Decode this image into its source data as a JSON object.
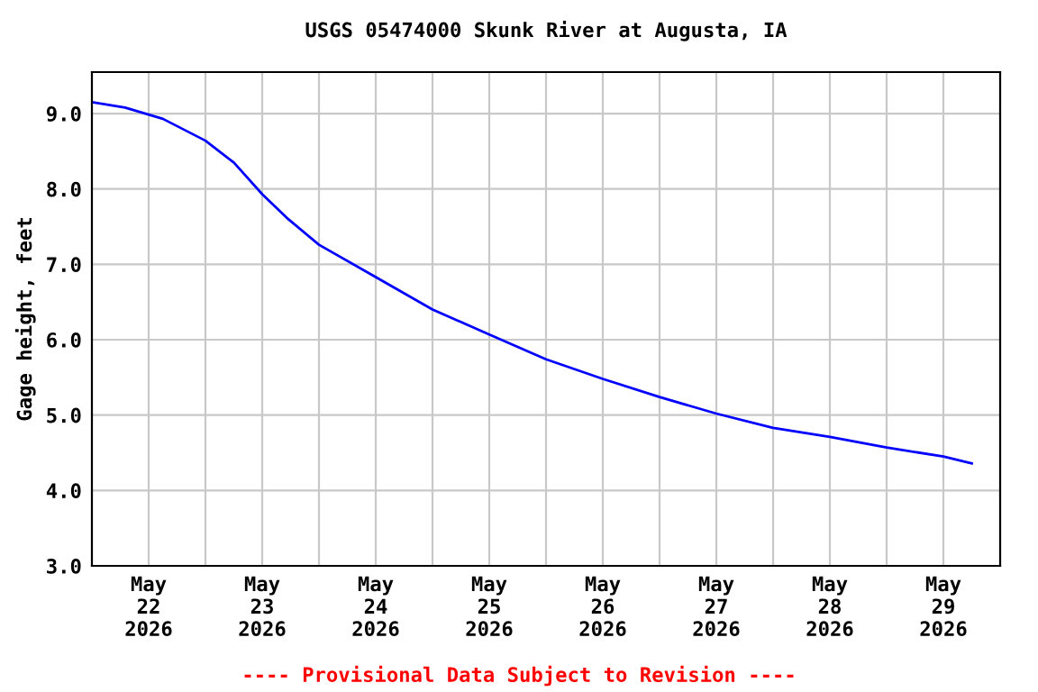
{
  "chart_data": {
    "type": "line",
    "title": "USGS 05474000 Skunk River at Augusta, IA",
    "ylabel": "Gage height, feet",
    "x": [
      "2026-05-22T00:00",
      "2026-05-22T07:00",
      "2026-05-22T15:00",
      "2026-05-23T00:00",
      "2026-05-23T06:00",
      "2026-05-23T12:00",
      "2026-05-23T17:30",
      "2026-05-24T00:00",
      "2026-05-24T12:00",
      "2026-05-25T00:00",
      "2026-05-25T12:00",
      "2026-05-26T00:00",
      "2026-05-26T12:00",
      "2026-05-27T00:00",
      "2026-05-27T12:00",
      "2026-05-28T00:00",
      "2026-05-28T12:00",
      "2026-05-29T00:00",
      "2026-05-29T12:00",
      "2026-05-29T18:00"
    ],
    "series": [
      {
        "color": "#0000ff",
        "values": [
          9.15,
          9.08,
          8.93,
          8.64,
          8.35,
          7.93,
          7.6,
          7.26,
          6.83,
          6.4,
          6.07,
          5.74,
          5.48,
          5.24,
          5.02,
          4.83,
          4.71,
          4.57,
          4.45,
          4.36
        ]
      }
    ],
    "xlim": [
      "2026-05-22T00:00",
      "2026-05-30T00:00"
    ],
    "xticks": [
      {
        "value": "2026-05-22T12:00",
        "label": "May\n22\n2026"
      },
      {
        "value": "2026-05-23T00:00",
        "label": null
      },
      {
        "value": "2026-05-23T12:00",
        "label": "May\n23\n2026"
      },
      {
        "value": "2026-05-24T00:00",
        "label": null
      },
      {
        "value": "2026-05-24T12:00",
        "label": "May\n24\n2026"
      },
      {
        "value": "2026-05-25T00:00",
        "label": null
      },
      {
        "value": "2026-05-25T12:00",
        "label": "May\n25\n2026"
      },
      {
        "value": "2026-05-26T00:00",
        "label": null
      },
      {
        "value": "2026-05-26T12:00",
        "label": "May\n26\n2026"
      },
      {
        "value": "2026-05-27T00:00",
        "label": null
      },
      {
        "value": "2026-05-27T12:00",
        "label": "May\n27\n2026"
      },
      {
        "value": "2026-05-28T00:00",
        "label": null
      },
      {
        "value": "2026-05-28T12:00",
        "label": "May\n28\n2026"
      },
      {
        "value": "2026-05-29T00:00",
        "label": null
      },
      {
        "value": "2026-05-29T12:00",
        "label": "May\n29\n2026"
      }
    ],
    "ylim": [
      3.0,
      9.55
    ],
    "yticks": [
      {
        "value": 3,
        "label": "3.0"
      },
      {
        "value": 4,
        "label": "4.0"
      },
      {
        "value": 5,
        "label": "5.0"
      },
      {
        "value": 6,
        "label": "6.0"
      },
      {
        "value": 7,
        "label": "7.0"
      },
      {
        "value": 8,
        "label": "8.0"
      },
      {
        "value": 9,
        "label": "9.0"
      }
    ],
    "grid": true,
    "annotations": [
      "---- Provisional Data Subject to Revision ----"
    ]
  }
}
